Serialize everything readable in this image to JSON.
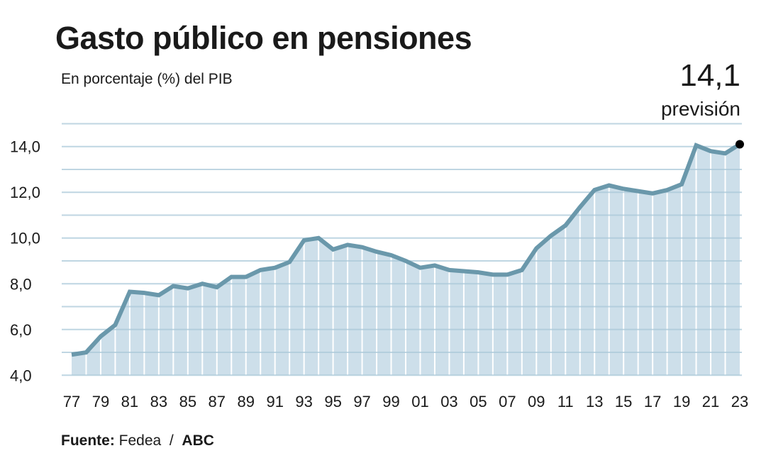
{
  "chart_data": {
    "type": "area",
    "title": "Gasto público en pensiones",
    "subtitle": "En porcentaje (%) del PIB",
    "xlabel": "",
    "ylabel": "",
    "ylim": [
      4.0,
      15.0
    ],
    "grid": true,
    "y_ticks": [
      "4,0",
      "6,0",
      "8,0",
      "10,0",
      "12,0",
      "14,0"
    ],
    "y_tick_values": [
      4,
      6,
      8,
      10,
      12,
      14
    ],
    "x_tick_labels": [
      "77",
      "79",
      "81",
      "83",
      "85",
      "87",
      "89",
      "91",
      "93",
      "95",
      "97",
      "99",
      "01",
      "03",
      "05",
      "07",
      "09",
      "11",
      "13",
      "15",
      "17",
      "19",
      "21",
      "23"
    ],
    "x": [
      1977,
      1978,
      1979,
      1980,
      1981,
      1982,
      1983,
      1984,
      1985,
      1986,
      1987,
      1988,
      1989,
      1990,
      1991,
      1992,
      1993,
      1994,
      1995,
      1996,
      1997,
      1998,
      1999,
      2000,
      2001,
      2002,
      2003,
      2004,
      2005,
      2006,
      2007,
      2008,
      2009,
      2010,
      2011,
      2012,
      2013,
      2014,
      2015,
      2016,
      2017,
      2018,
      2019,
      2020,
      2021,
      2022,
      2023
    ],
    "values": [
      4.9,
      5.0,
      5.7,
      6.2,
      7.65,
      7.6,
      7.5,
      7.9,
      7.8,
      8.0,
      7.85,
      8.3,
      8.3,
      8.6,
      8.7,
      8.95,
      9.9,
      10.0,
      9.5,
      9.7,
      9.6,
      9.4,
      9.25,
      9.0,
      8.7,
      8.8,
      8.6,
      8.55,
      8.5,
      8.4,
      8.4,
      8.6,
      9.55,
      10.1,
      10.55,
      11.35,
      12.1,
      12.3,
      12.15,
      12.05,
      11.95,
      12.1,
      12.35,
      14.05,
      13.8,
      13.7,
      14.1
    ],
    "annotation": {
      "value": "14,1",
      "label": "previsión"
    },
    "colors": {
      "line": "#6a98ab",
      "fill": "#cddfea",
      "grid": "#c6dce8",
      "marker": "#000000"
    }
  },
  "source": {
    "label": "Fuente:",
    "name": "Fedea",
    "separator": "/",
    "publisher": "ABC"
  }
}
